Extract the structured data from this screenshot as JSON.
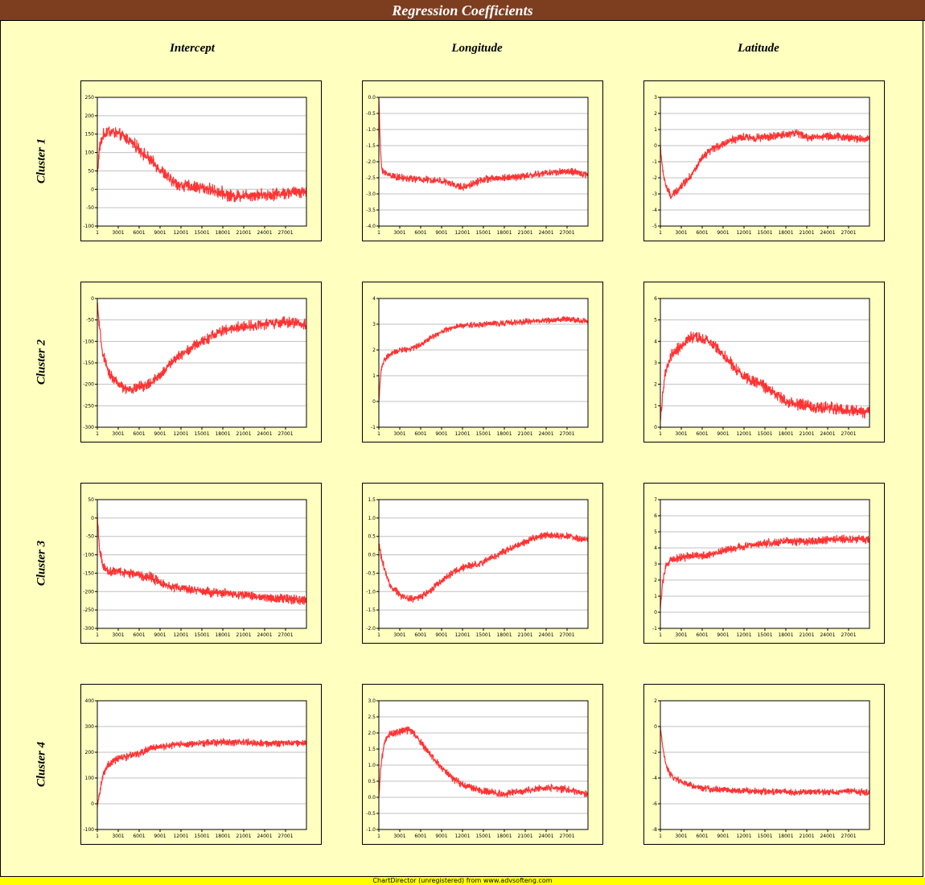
{
  "title": "Regression Coefficients",
  "columns": [
    "Intercept",
    "Longitude",
    "Latitude"
  ],
  "rows": [
    "Cluster 1",
    "Cluster 2",
    "Cluster 3",
    "Cluster 4"
  ],
  "footer": "ChartDirector (unregistered) from www.advsofteng.com",
  "style": {
    "line_color": "#ff3333",
    "plot_bg": "#ffffff",
    "panel_bg": "#ffffc0",
    "title_bg": "#7d3d1f",
    "footer_bg": "#ffff00"
  },
  "chart_data": [
    {
      "type": "line",
      "row": "Cluster 1",
      "column": "Intercept",
      "x_ticks": [
        "1",
        "3001",
        "6001",
        "9001",
        "12001",
        "15001",
        "18001",
        "21001",
        "24001",
        "27001"
      ],
      "x_range": [
        1,
        30000
      ],
      "y_ticks": [
        "250",
        "200",
        "150",
        "100",
        "50",
        "0",
        "-50",
        "-100"
      ],
      "ylim": [
        -100,
        250
      ],
      "grid": true,
      "noise": 12,
      "trend_x": [
        1,
        300,
        800,
        1500,
        3000,
        4500,
        6000,
        7500,
        9000,
        10500,
        12000,
        15000,
        18000,
        19500,
        21000,
        24000,
        27000,
        30000
      ],
      "trend_y": [
        40,
        110,
        145,
        160,
        150,
        135,
        110,
        80,
        55,
        25,
        10,
        5,
        -10,
        -20,
        -15,
        -15,
        -10,
        -5
      ]
    },
    {
      "type": "line",
      "row": "Cluster 1",
      "column": "Longitude",
      "x_ticks": [
        "1",
        "3001",
        "6001",
        "9001",
        "12001",
        "15001",
        "18001",
        "21001",
        "24001",
        "27001"
      ],
      "x_range": [
        1,
        30000
      ],
      "y_ticks": [
        "0.0",
        "-0.5",
        "-1.0",
        "-1.5",
        "-2.0",
        "-2.5",
        "-3.0",
        "-3.5",
        "-4.0"
      ],
      "ylim": [
        -4.0,
        0.0
      ],
      "grid": true,
      "noise": 0.08,
      "trend_x": [
        1,
        200,
        400,
        800,
        1500,
        3000,
        6000,
        9000,
        12000,
        15000,
        18000,
        21000,
        24000,
        27000,
        30000
      ],
      "trend_y": [
        0,
        -1.5,
        -2.2,
        -2.35,
        -2.4,
        -2.5,
        -2.55,
        -2.6,
        -2.8,
        -2.55,
        -2.5,
        -2.45,
        -2.35,
        -2.3,
        -2.4
      ]
    },
    {
      "type": "line",
      "row": "Cluster 1",
      "column": "Latitude",
      "x_ticks": [
        "1",
        "3001",
        "6001",
        "9001",
        "12001",
        "15001",
        "18001",
        "21001",
        "24001",
        "27001"
      ],
      "x_range": [
        1,
        30000
      ],
      "y_ticks": [
        "3",
        "2",
        "1",
        "0",
        "-1",
        "-2",
        "-3",
        "-4",
        "-5"
      ],
      "ylim": [
        -5,
        3
      ],
      "grid": true,
      "noise": 0.18,
      "trend_x": [
        1,
        300,
        800,
        1500,
        3000,
        4500,
        6000,
        7500,
        9000,
        10500,
        12000,
        15000,
        18000,
        19500,
        21000,
        24000,
        27000,
        30000
      ],
      "trend_y": [
        0,
        -1.5,
        -2.5,
        -3.2,
        -2.5,
        -1.8,
        -0.8,
        -0.2,
        0.1,
        0.4,
        0.5,
        0.5,
        0.7,
        0.8,
        0.5,
        0.6,
        0.5,
        0.4
      ]
    },
    {
      "type": "line",
      "row": "Cluster 2",
      "column": "Intercept",
      "x_ticks": [
        "1",
        "3001",
        "6001",
        "9001",
        "12001",
        "15001",
        "18001",
        "21001",
        "24001",
        "27001"
      ],
      "x_range": [
        1,
        30000
      ],
      "y_ticks": [
        "0",
        "-50",
        "-100",
        "-150",
        "-200",
        "-250",
        "-300"
      ],
      "ylim": [
        -300,
        0
      ],
      "grid": true,
      "noise": 9,
      "trend_x": [
        1,
        300,
        800,
        1500,
        3000,
        4500,
        6000,
        7500,
        9000,
        10500,
        12000,
        15000,
        18000,
        21000,
        24000,
        27000,
        30000
      ],
      "trend_y": [
        -10,
        -70,
        -130,
        -170,
        -200,
        -215,
        -205,
        -200,
        -180,
        -150,
        -130,
        -100,
        -75,
        -65,
        -60,
        -55,
        -60
      ]
    },
    {
      "type": "line",
      "row": "Cluster 2",
      "column": "Longitude",
      "x_ticks": [
        "1",
        "3001",
        "6001",
        "9001",
        "12001",
        "15001",
        "18001",
        "21001",
        "24001",
        "27001"
      ],
      "x_range": [
        1,
        30000
      ],
      "y_ticks": [
        "4",
        "3",
        "2",
        "1",
        "0",
        "-1"
      ],
      "ylim": [
        -1,
        4
      ],
      "grid": true,
      "noise": 0.08,
      "trend_x": [
        1,
        300,
        800,
        1500,
        3000,
        4500,
        6000,
        7500,
        9000,
        10500,
        12000,
        15000,
        18000,
        21000,
        24000,
        27000,
        30000
      ],
      "trend_y": [
        0,
        1.2,
        1.6,
        1.8,
        2.0,
        2.05,
        2.2,
        2.5,
        2.7,
        2.85,
        2.95,
        3.0,
        3.05,
        3.1,
        3.15,
        3.2,
        3.1
      ]
    },
    {
      "type": "line",
      "row": "Cluster 2",
      "column": "Latitude",
      "x_ticks": [
        "1",
        "3001",
        "6001",
        "9001",
        "12001",
        "15001",
        "18001",
        "21001",
        "24001",
        "27001"
      ],
      "x_range": [
        1,
        30000
      ],
      "y_ticks": [
        "6",
        "5",
        "4",
        "3",
        "2",
        "1",
        "0"
      ],
      "ylim": [
        0,
        6
      ],
      "grid": true,
      "noise": 0.2,
      "trend_x": [
        1,
        300,
        800,
        1500,
        3000,
        4500,
        6000,
        7500,
        9000,
        10500,
        12000,
        15000,
        18000,
        21000,
        24000,
        27000,
        30000
      ],
      "trend_y": [
        0.3,
        1.5,
        2.6,
        3.3,
        3.8,
        4.2,
        4.1,
        3.9,
        3.4,
        2.8,
        2.4,
        1.9,
        1.2,
        1.0,
        0.9,
        0.8,
        0.7
      ]
    },
    {
      "type": "line",
      "row": "Cluster 3",
      "column": "Intercept",
      "x_ticks": [
        "1",
        "3001",
        "6001",
        "9001",
        "12001",
        "15001",
        "18001",
        "21001",
        "24001",
        "27001"
      ],
      "x_range": [
        1,
        30000
      ],
      "y_ticks": [
        "50",
        "0",
        "-50",
        "-100",
        "-150",
        "-200",
        "-250",
        "-300"
      ],
      "ylim": [
        -300,
        50
      ],
      "grid": true,
      "noise": 9,
      "trend_x": [
        1,
        300,
        800,
        1500,
        3000,
        4500,
        6000,
        7500,
        9000,
        10500,
        12000,
        15000,
        18000,
        21000,
        24000,
        27000,
        30000
      ],
      "trend_y": [
        0,
        -80,
        -130,
        -145,
        -145,
        -150,
        -155,
        -160,
        -175,
        -185,
        -190,
        -200,
        -205,
        -210,
        -215,
        -220,
        -225
      ]
    },
    {
      "type": "line",
      "row": "Cluster 3",
      "column": "Longitude",
      "x_ticks": [
        "1",
        "3001",
        "6001",
        "9001",
        "12001",
        "15001",
        "18001",
        "21001",
        "24001",
        "27001"
      ],
      "x_range": [
        1,
        30000
      ],
      "y_ticks": [
        "1.5",
        "1.0",
        "0.5",
        "0.0",
        "-0.5",
        "-1.0",
        "-1.5",
        "-2.0"
      ],
      "ylim": [
        -2.0,
        1.5
      ],
      "grid": true,
      "noise": 0.07,
      "trend_x": [
        1,
        300,
        800,
        1500,
        3000,
        4500,
        6000,
        7500,
        9000,
        10500,
        12000,
        15000,
        18000,
        21000,
        24000,
        27000,
        30000
      ],
      "trend_y": [
        0.3,
        0,
        -0.4,
        -0.8,
        -1.1,
        -1.2,
        -1.15,
        -0.95,
        -0.7,
        -0.5,
        -0.35,
        -0.2,
        0.1,
        0.35,
        0.55,
        0.5,
        0.4
      ]
    },
    {
      "type": "line",
      "row": "Cluster 3",
      "column": "Latitude",
      "x_ticks": [
        "1",
        "3001",
        "6001",
        "9001",
        "12001",
        "15001",
        "18001",
        "21001",
        "24001",
        "27001"
      ],
      "x_range": [
        1,
        30000
      ],
      "y_ticks": [
        "7",
        "6",
        "5",
        "4",
        "3",
        "2",
        "1",
        "0",
        "-1"
      ],
      "ylim": [
        -1,
        7
      ],
      "grid": true,
      "noise": 0.18,
      "trend_x": [
        1,
        300,
        800,
        1500,
        3000,
        4500,
        6000,
        7500,
        9000,
        10500,
        12000,
        15000,
        18000,
        21000,
        24000,
        27000,
        30000
      ],
      "trend_y": [
        0.2,
        1.8,
        2.9,
        3.2,
        3.4,
        3.5,
        3.5,
        3.6,
        3.8,
        4.0,
        4.1,
        4.3,
        4.4,
        4.4,
        4.5,
        4.55,
        4.5
      ]
    },
    {
      "type": "line",
      "row": "Cluster 4",
      "column": "Intercept",
      "x_ticks": [
        "1",
        "3001",
        "6001",
        "9001",
        "12001",
        "15001",
        "18001",
        "21001",
        "24001",
        "27001"
      ],
      "x_range": [
        1,
        30000
      ],
      "y_ticks": [
        "400",
        "300",
        "200",
        "100",
        "0",
        "-100"
      ],
      "ylim": [
        -100,
        400
      ],
      "grid": true,
      "noise": 10,
      "trend_x": [
        1,
        300,
        800,
        1500,
        3000,
        4500,
        6000,
        7500,
        9000,
        10500,
        12000,
        15000,
        18000,
        21000,
        24000,
        27000,
        30000
      ],
      "trend_y": [
        -10,
        40,
        110,
        150,
        175,
        185,
        195,
        215,
        220,
        225,
        230,
        235,
        240,
        240,
        235,
        235,
        235
      ]
    },
    {
      "type": "line",
      "row": "Cluster 4",
      "column": "Longitude",
      "x_ticks": [
        "1",
        "3001",
        "6001",
        "9001",
        "12001",
        "15001",
        "18001",
        "21001",
        "24001",
        "27001"
      ],
      "x_range": [
        1,
        30000
      ],
      "y_ticks": [
        "3.0",
        "2.5",
        "2.0",
        "1.5",
        "1.0",
        "0.5",
        "0.0",
        "-0.5",
        "-1.0"
      ],
      "ylim": [
        -1.0,
        3.0
      ],
      "grid": true,
      "noise": 0.08,
      "trend_x": [
        1,
        300,
        800,
        1500,
        3000,
        4500,
        6000,
        7500,
        9000,
        10500,
        12000,
        15000,
        18000,
        21000,
        24000,
        27000,
        30000
      ],
      "trend_y": [
        0,
        1.0,
        1.7,
        1.95,
        2.05,
        2.1,
        1.7,
        1.3,
        0.9,
        0.6,
        0.4,
        0.2,
        0.1,
        0.2,
        0.3,
        0.25,
        0.1
      ]
    },
    {
      "type": "line",
      "row": "Cluster 4",
      "column": "Latitude",
      "x_ticks": [
        "1",
        "3001",
        "6001",
        "9001",
        "12001",
        "15001",
        "18001",
        "21001",
        "24001",
        "27001"
      ],
      "x_range": [
        1,
        30000
      ],
      "y_ticks": [
        "2",
        "0",
        "-2",
        "-4",
        "-6",
        "-8"
      ],
      "ylim": [
        -8,
        2
      ],
      "grid": true,
      "noise": 0.18,
      "trend_x": [
        1,
        300,
        800,
        1500,
        3000,
        4500,
        6000,
        7500,
        9000,
        10500,
        12000,
        15000,
        18000,
        21000,
        24000,
        27000,
        30000
      ],
      "trend_y": [
        0,
        -1.5,
        -3.0,
        -3.8,
        -4.3,
        -4.6,
        -4.8,
        -4.9,
        -4.9,
        -5.0,
        -5.0,
        -5.05,
        -5.1,
        -5.1,
        -5.1,
        -5.05,
        -5.1
      ]
    }
  ]
}
